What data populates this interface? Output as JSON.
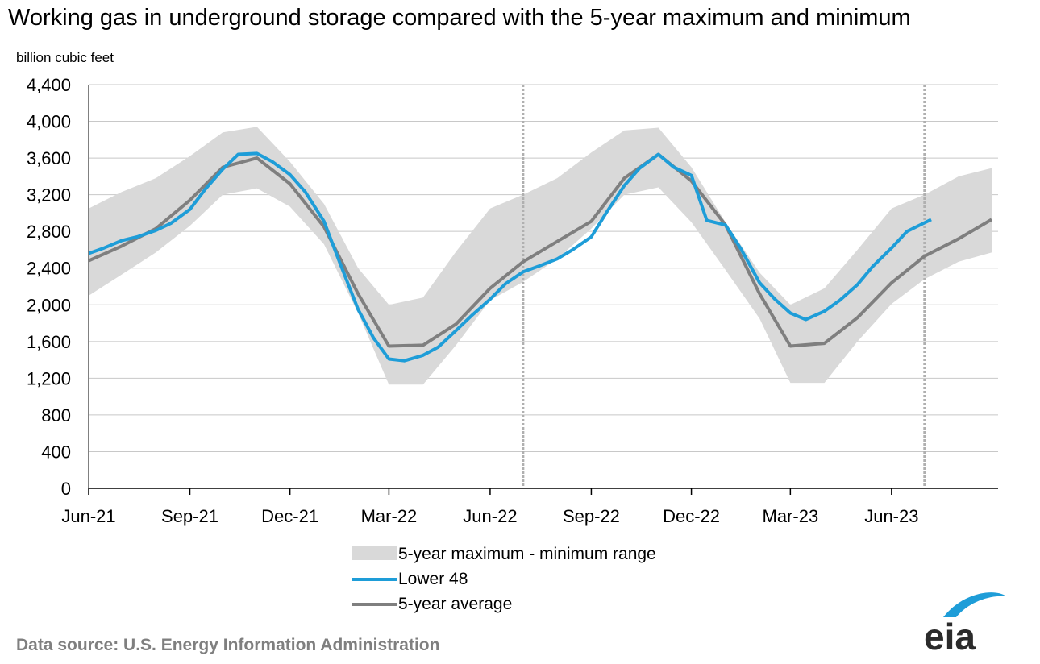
{
  "title": "Working gas in underground  storage compared with the 5-year maximum and minimum",
  "unit_label": "billion cubic feet",
  "source": "Data source:  U.S. Energy  Information  Administration",
  "logo_text": "eia",
  "colors": {
    "lower48": "#1e9dd8",
    "average": "#7f7f7f",
    "range": "#d9d9d9",
    "grid": "#c8c8c8"
  },
  "chart_data": {
    "type": "line",
    "x_start": "2021-06-01",
    "x_end": "2023-08-31",
    "x_ticks": [
      {
        "label": "Jun-21",
        "date": "2021-06-01"
      },
      {
        "label": "Sep-21",
        "date": "2021-09-01"
      },
      {
        "label": "Dec-21",
        "date": "2021-12-01"
      },
      {
        "label": "Mar-22",
        "date": "2022-03-01"
      },
      {
        "label": "Jun-22",
        "date": "2022-06-01"
      },
      {
        "label": "Sep-22",
        "date": "2022-09-01"
      },
      {
        "label": "Dec-22",
        "date": "2022-12-01"
      },
      {
        "label": "Mar-23",
        "date": "2023-03-01"
      },
      {
        "label": "Jun-23",
        "date": "2023-06-01"
      }
    ],
    "y_ticks": [
      0,
      400,
      800,
      1200,
      1600,
      2000,
      2400,
      2800,
      3200,
      3600,
      4000,
      4400
    ],
    "y_tick_labels": [
      "0",
      "400",
      "800",
      "1,200",
      "1,600",
      "2,000",
      "2,400",
      "2,800",
      "3,200",
      "3,600",
      "4,000",
      "4,400"
    ],
    "ylim": [
      0,
      4400
    ],
    "grid": true,
    "vertical_markers": [
      "2022-07-01",
      "2023-07-01"
    ],
    "legend_position": "bottom",
    "series": [
      {
        "name": "5-year maximum - minimum range",
        "kind": "range",
        "x": [
          "2021-06-01",
          "2021-07-01",
          "2021-08-01",
          "2021-09-01",
          "2021-10-01",
          "2021-11-01",
          "2021-12-01",
          "2022-01-01",
          "2022-02-01",
          "2022-03-01",
          "2022-04-01",
          "2022-05-01",
          "2022-06-01",
          "2022-07-01",
          "2022-08-01",
          "2022-09-01",
          "2022-10-01",
          "2022-11-01",
          "2022-12-01",
          "2023-01-01",
          "2023-02-01",
          "2023-03-01",
          "2023-04-01",
          "2023-05-01",
          "2023-06-01",
          "2023-07-01",
          "2023-08-01",
          "2023-08-31"
        ],
        "max": [
          3050,
          3230,
          3380,
          3620,
          3880,
          3940,
          3560,
          3100,
          2400,
          2000,
          2080,
          2580,
          3050,
          3200,
          3380,
          3660,
          3900,
          3930,
          3500,
          2900,
          2350,
          2000,
          2180,
          2600,
          3050,
          3200,
          3400,
          3490
        ],
        "min": [
          2100,
          2330,
          2570,
          2860,
          3200,
          3270,
          3070,
          2660,
          1910,
          1130,
          1130,
          1560,
          2050,
          2250,
          2500,
          2830,
          3200,
          3280,
          2900,
          2380,
          1850,
          1150,
          1150,
          1600,
          2010,
          2280,
          2470,
          2570
        ]
      },
      {
        "name": "Lower 48",
        "kind": "line",
        "x": [
          "2021-06-01",
          "2021-06-15",
          "2021-07-01",
          "2021-07-15",
          "2021-08-01",
          "2021-08-15",
          "2021-09-01",
          "2021-09-15",
          "2021-10-01",
          "2021-10-15",
          "2021-11-01",
          "2021-11-15",
          "2021-12-01",
          "2021-12-15",
          "2022-01-01",
          "2022-01-15",
          "2022-02-01",
          "2022-02-15",
          "2022-03-01",
          "2022-03-15",
          "2022-04-01",
          "2022-04-15",
          "2022-05-01",
          "2022-05-15",
          "2022-06-01",
          "2022-06-15",
          "2022-07-01",
          "2022-07-15",
          "2022-08-01",
          "2022-08-15",
          "2022-09-01",
          "2022-09-15",
          "2022-10-01",
          "2022-10-15",
          "2022-11-01",
          "2022-11-15",
          "2022-12-01",
          "2022-12-15",
          "2023-01-01",
          "2023-01-15",
          "2023-02-01",
          "2023-02-15",
          "2023-03-01",
          "2023-03-15",
          "2023-04-01",
          "2023-04-15",
          "2023-05-01",
          "2023-05-15",
          "2023-06-01",
          "2023-06-15",
          "2023-07-07"
        ],
        "values": [
          2560,
          2620,
          2700,
          2740,
          2810,
          2890,
          3040,
          3260,
          3480,
          3640,
          3650,
          3560,
          3420,
          3230,
          2910,
          2470,
          1950,
          1640,
          1410,
          1390,
          1450,
          1540,
          1720,
          1880,
          2060,
          2230,
          2360,
          2420,
          2500,
          2600,
          2740,
          3010,
          3300,
          3490,
          3640,
          3500,
          3410,
          2920,
          2870,
          2610,
          2240,
          2060,
          1910,
          1840,
          1930,
          2050,
          2220,
          2420,
          2620,
          2800,
          2930
        ]
      },
      {
        "name": "5-year average",
        "kind": "line",
        "x": [
          "2021-06-01",
          "2021-07-01",
          "2021-08-01",
          "2021-09-01",
          "2021-10-01",
          "2021-11-01",
          "2021-12-01",
          "2022-01-01",
          "2022-02-01",
          "2022-03-01",
          "2022-04-01",
          "2022-05-01",
          "2022-06-01",
          "2022-07-01",
          "2022-08-01",
          "2022-09-01",
          "2022-10-01",
          "2022-11-01",
          "2022-12-01",
          "2023-01-01",
          "2023-02-01",
          "2023-03-01",
          "2023-04-01",
          "2023-05-01",
          "2023-06-01",
          "2023-07-01",
          "2023-08-01",
          "2023-08-31"
        ],
        "values": [
          2480,
          2640,
          2830,
          3140,
          3500,
          3600,
          3320,
          2850,
          2120,
          1550,
          1560,
          1790,
          2180,
          2470,
          2690,
          2910,
          3380,
          3640,
          3350,
          2870,
          2120,
          1550,
          1580,
          1860,
          2240,
          2530,
          2720,
          2930
        ]
      }
    ]
  }
}
